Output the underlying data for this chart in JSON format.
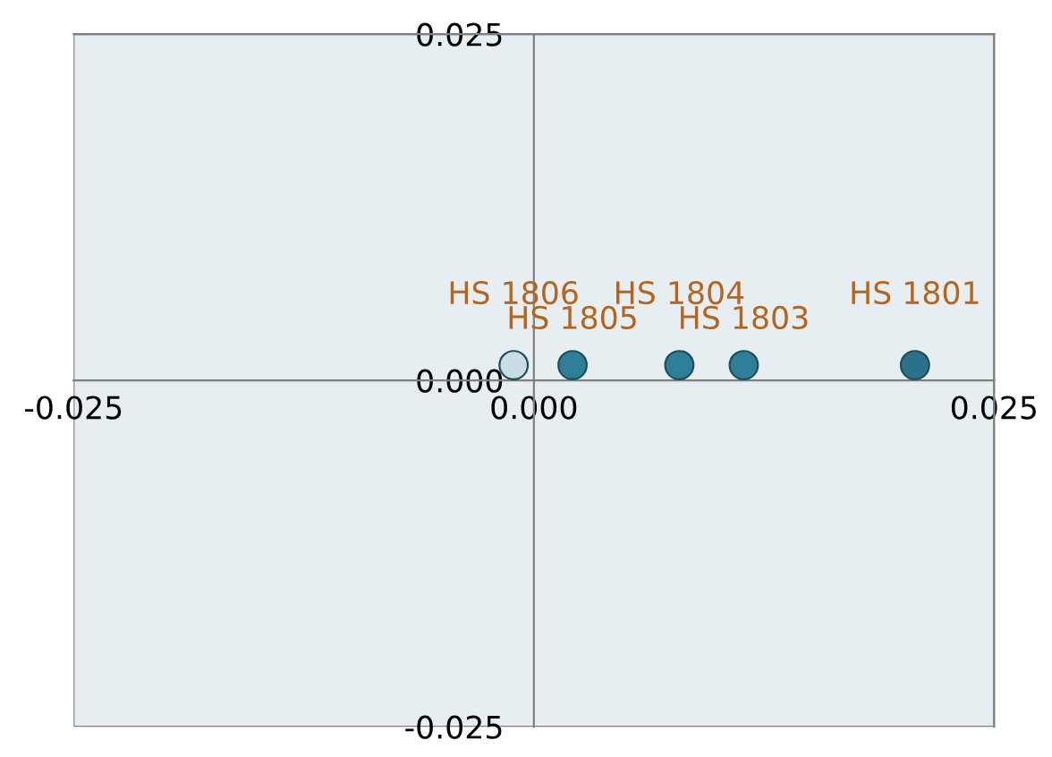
{
  "chart_data": {
    "type": "scatter",
    "x": [
      -0.0011,
      0.0021,
      0.0079,
      0.0114,
      0.0207
    ],
    "values": [
      0.0011,
      0.0011,
      0.0011,
      0.0011,
      0.0011
    ],
    "colors": [
      "#c9dde5",
      "#2f7f98",
      "#2f7f98",
      "#2f7f98",
      "#2a7189"
    ],
    "annotations": [
      {
        "text": "HS 1806",
        "x": -0.0011,
        "y": 0.0011
      },
      {
        "text": "HS 1805",
        "x": 0.0021,
        "y": 0.0011
      },
      {
        "text": "HS 1804",
        "x": 0.0079,
        "y": 0.0011
      },
      {
        "text": "HS 1803",
        "x": 0.0114,
        "y": 0.0011
      },
      {
        "text": "HS 1801",
        "x": 0.0207,
        "y": 0.0011
      }
    ],
    "xlim": [
      -0.025,
      0.025
    ],
    "ylim": [
      -0.025,
      0.025
    ],
    "xticks": [
      -0.025,
      {
        "value": 0,
        "label": "0.000"
      },
      0.025
    ],
    "yticks": [
      -0.025,
      {
        "value": 0,
        "label": "0.000"
      },
      0.025
    ],
    "grid": false,
    "legend": false,
    "marker": "circle"
  }
}
